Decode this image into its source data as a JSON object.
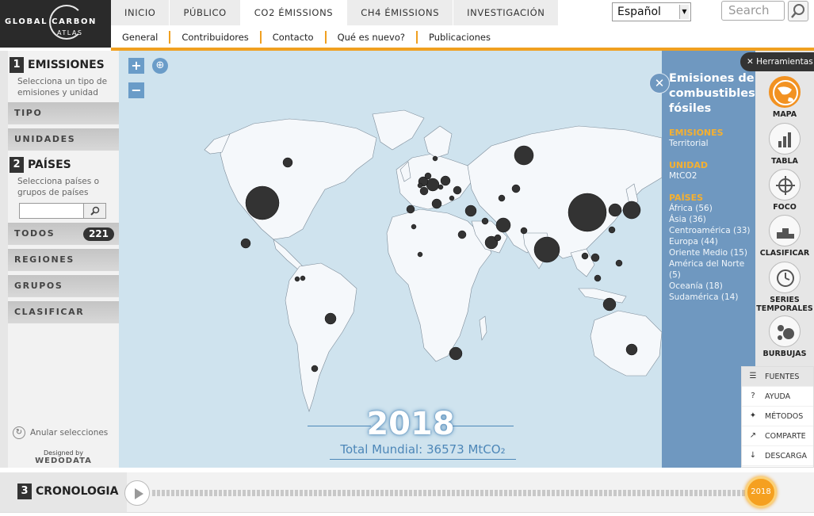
{
  "header": {
    "logo_line1": "GLOBAL CARBON",
    "logo_line2": "ATLAS",
    "tabs": [
      {
        "label": "INICIO"
      },
      {
        "label": "PÚBLICO"
      },
      {
        "label": "CO2 ÉMISSIONS"
      },
      {
        "label": "CH4 ÉMISSIONS"
      },
      {
        "label": "INVESTIGACIÓN"
      }
    ],
    "active_tab": "CO2 ÉMISSIONS",
    "language": "Español",
    "search_placeholder": "Search",
    "subnav": [
      "General",
      "Contribuidores",
      "Contacto",
      "Qué es nuevo?",
      "Publicaciones"
    ]
  },
  "sidebar": {
    "section1": {
      "num": "1",
      "title": "EMISSIONES",
      "desc": "Selecciona un tipo de emisiones y unidad"
    },
    "tipo": "TIPO",
    "unidades": "UNIDADES",
    "section2": {
      "num": "2",
      "title": "PAÍSES",
      "desc": "Selecciona países o grupos de países"
    },
    "todos": "TODOS",
    "todos_count": "221",
    "regiones": "REGIONES",
    "grupos": "GRUPOS",
    "clasificar": "CLASIFICAR",
    "anular": "Anular selecciones",
    "designed_by": "Designed by",
    "designer": "WEDODATA"
  },
  "map": {
    "year": "2018",
    "total": "Total Mundial: 36573 MtCO₂",
    "colors": {
      "ocean": "#cfe3ee",
      "land": "#f5f8fb",
      "bubble": "#333333"
    }
  },
  "info": {
    "title": "Emisiones de combustibles fósiles",
    "emisiones_label": "EMISIONES",
    "emisiones_value": "Territorial",
    "unidad_label": "UNIDAD",
    "unidad_value": "MtCO2",
    "paises_label": "PAÍSES",
    "paises": [
      "África (56)",
      "Ásia (36)",
      "Centroamérica (33)",
      "Europa (44)",
      "Oriente Medio (15)",
      "América del Norte (5)",
      "Oceanía (18)",
      "Sudamérica (14)"
    ]
  },
  "tools": {
    "header": "Herramientas",
    "items": [
      "MAPA",
      "TABLA",
      "FOCO",
      "CLASIFICAR",
      "SERIES TEMPORALES",
      "BURBUJAS"
    ],
    "menu": [
      "FUENTES",
      "AYUDA",
      "MÉTODOS",
      "COMPARTE",
      "DESCARGA"
    ]
  },
  "timeline": {
    "num": "3",
    "title": "CRONOLOGIA",
    "year": "2018"
  }
}
